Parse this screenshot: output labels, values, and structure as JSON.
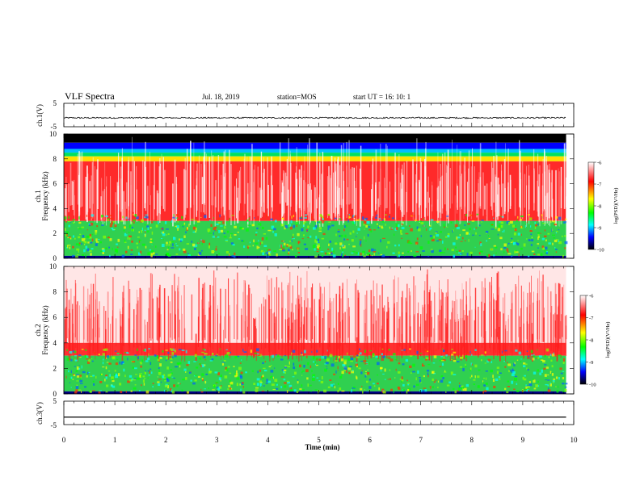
{
  "header": {
    "title": "VLF Spectra",
    "date": "Jul. 18, 2019",
    "station": "station=MOS",
    "start": "start  UT =   16: 10: 1"
  },
  "panels": {
    "ch1_wave_label": "ch.1(V)",
    "ch1_spec_label": "ch.1",
    "ch2_spec_label": "ch.2",
    "freq_label": "Frequency (kHz)",
    "ch3_wave_label": "ch.3(V)",
    "x_label": "Time (min)"
  },
  "colorbar": {
    "label": "log(PSD)(V²/Hz)",
    "ticks": [
      "-6",
      "-7",
      "-8",
      "-9",
      "-10"
    ],
    "colors": [
      "#ffffff",
      "#ff0000",
      "#ffff00",
      "#00ff00",
      "#00ffff",
      "#0000ff",
      "#000000"
    ]
  },
  "chart_data": [
    {
      "type": "line",
      "name": "ch1-waveform",
      "ylabel": "ch.1(V)",
      "ylim": [
        -5,
        5
      ],
      "yticks": [
        -5,
        5
      ],
      "xlim": [
        0,
        10
      ],
      "trace": {
        "x_range": [
          0,
          9.85
        ],
        "mean": -1.2,
        "amplitude": 0.3
      }
    },
    {
      "type": "heatmap",
      "name": "ch1-spectrogram",
      "ylabel": "Frequency (kHz)",
      "ylim": [
        0,
        10
      ],
      "yticks": [
        0,
        2,
        4,
        6,
        8,
        10
      ],
      "xlim": [
        0,
        10
      ],
      "data_x_range": [
        0,
        9.85
      ],
      "bands": [
        {
          "f": [
            9.3,
            10
          ],
          "log_psd": -10,
          "color": "#000000"
        },
        {
          "f": [
            8.8,
            9.3
          ],
          "log_psd": -9.2,
          "color": "#0000ff"
        },
        {
          "f": [
            8.5,
            8.8
          ],
          "log_psd": -8.8,
          "color": "#00bfff"
        },
        {
          "f": [
            8.2,
            8.5
          ],
          "log_psd": -8.2,
          "color": "#00e060"
        },
        {
          "f": [
            7.8,
            8.2
          ],
          "log_psd": -7.5,
          "color": "#ffe000"
        },
        {
          "f": [
            3.0,
            7.8
          ],
          "log_psd": -6.8,
          "color": "#ff2a2a"
        },
        {
          "f": [
            0.2,
            3.0
          ],
          "log_psd": -8.0,
          "color": "#30d050"
        },
        {
          "f": [
            0,
            0.2
          ],
          "log_psd": -9.5,
          "color": "#000080"
        }
      ]
    },
    {
      "type": "heatmap",
      "name": "ch2-spectrogram",
      "ylabel": "Frequency (kHz)",
      "ylim": [
        0,
        10
      ],
      "yticks": [
        0,
        2,
        4,
        6,
        8,
        10
      ],
      "xlim": [
        0,
        10
      ],
      "data_x_range": [
        0,
        9.85
      ],
      "bands": [
        {
          "f": [
            4.0,
            10
          ],
          "log_psd": -6.2,
          "color": "#ffe6e6"
        },
        {
          "f": [
            3.0,
            4.0
          ],
          "log_psd": -6.9,
          "color": "#ff3030"
        },
        {
          "f": [
            0.2,
            3.0
          ],
          "log_psd": -8.0,
          "color": "#30d050"
        },
        {
          "f": [
            0,
            0.2
          ],
          "log_psd": -9.5,
          "color": "#000080"
        }
      ]
    },
    {
      "type": "line",
      "name": "ch3-waveform",
      "ylabel": "ch.3(V)",
      "ylim": [
        -5,
        5
      ],
      "yticks": [
        -5,
        5
      ],
      "xlim": [
        0,
        10
      ],
      "trace": {
        "x_range": [
          0,
          9.85
        ],
        "mean": -1.8,
        "amplitude": 0.0
      }
    }
  ],
  "x_axis": {
    "label": "Time (min)",
    "range": [
      0,
      10
    ],
    "ticks": [
      "0",
      "1",
      "2",
      "3",
      "4",
      "5",
      "6",
      "7",
      "8",
      "9",
      "10"
    ]
  }
}
